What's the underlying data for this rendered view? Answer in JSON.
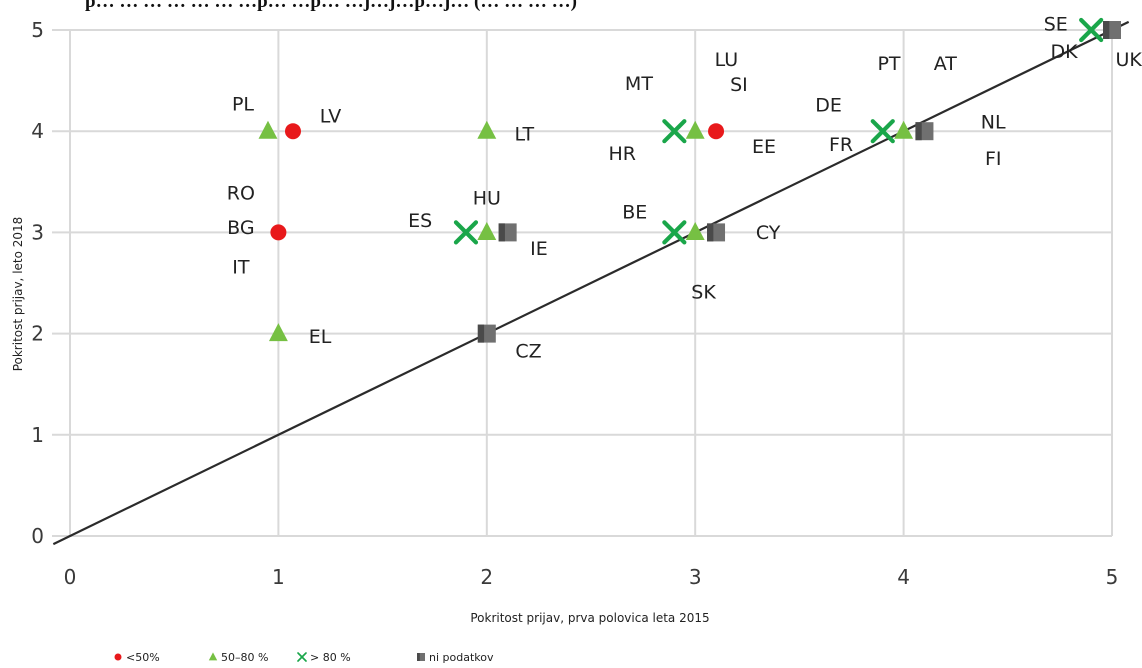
{
  "chart_data": {
    "type": "scatter",
    "title": "p… … … … … … …p… …p… …j…j…p…j… (… … … …)",
    "xlabel": "Pokritost prijav, prva polovica leta 2015",
    "ylabel": "Pokritost prijav, leto 2018",
    "xlim": [
      0,
      5
    ],
    "ylim": [
      0,
      5
    ],
    "x_ticks": [
      "0",
      "1",
      "2",
      "3",
      "4",
      "5"
    ],
    "y_ticks": [
      "0",
      "1",
      "2",
      "3",
      "4",
      "5"
    ],
    "grid": true,
    "reference_line": {
      "from": [
        0,
        0
      ],
      "to": [
        5,
        5
      ]
    },
    "legend": {
      "placement": "bottom-left",
      "entries": [
        {
          "key": "lt50",
          "label": "<50%",
          "color": "#e8191b",
          "marker": "circle"
        },
        {
          "key": "mid",
          "label": "50–80 %",
          "color": "#76c043",
          "marker": "triangle"
        },
        {
          "key": "gt80",
          "label": "> 80 %",
          "color": "#1aa64a",
          "marker": "x"
        },
        {
          "key": "nodata",
          "label": "ni podatkov",
          "color": "#707070",
          "marker": "square"
        }
      ]
    },
    "points": [
      {
        "series": "mid",
        "x": 0.95,
        "y": 4
      },
      {
        "series": "lt50",
        "x": 1.07,
        "y": 4
      },
      {
        "series": "lt50",
        "x": 1.0,
        "y": 3
      },
      {
        "series": "mid",
        "x": 1.0,
        "y": 2
      },
      {
        "series": "mid",
        "x": 2.0,
        "y": 4
      },
      {
        "series": "gt80",
        "x": 1.9,
        "y": 3
      },
      {
        "series": "mid",
        "x": 2.0,
        "y": 3
      },
      {
        "series": "nodata",
        "x": 2.1,
        "y": 3
      },
      {
        "series": "nodata",
        "x": 2.0,
        "y": 2
      },
      {
        "series": "gt80",
        "x": 2.9,
        "y": 4
      },
      {
        "series": "mid",
        "x": 3.0,
        "y": 4
      },
      {
        "series": "lt50",
        "x": 3.1,
        "y": 4
      },
      {
        "series": "gt80",
        "x": 2.9,
        "y": 3
      },
      {
        "series": "mid",
        "x": 3.0,
        "y": 3
      },
      {
        "series": "nodata",
        "x": 3.1,
        "y": 3
      },
      {
        "series": "gt80",
        "x": 3.9,
        "y": 4
      },
      {
        "series": "mid",
        "x": 4.0,
        "y": 4
      },
      {
        "series": "nodata",
        "x": 4.1,
        "y": 4
      },
      {
        "series": "gt80",
        "x": 4.9,
        "y": 5
      },
      {
        "series": "nodata",
        "x": 5.0,
        "y": 5
      }
    ],
    "country_labels": [
      {
        "text": "PL",
        "x": 0.83,
        "y": 4.26
      },
      {
        "text": "LV",
        "x": 1.25,
        "y": 4.14
      },
      {
        "text": "RO",
        "x": 0.82,
        "y": 3.38
      },
      {
        "text": "BG",
        "x": 0.82,
        "y": 3.04
      },
      {
        "text": "IT",
        "x": 0.82,
        "y": 2.65
      },
      {
        "text": "EL",
        "x": 1.2,
        "y": 1.96
      },
      {
        "text": "LT",
        "x": 2.18,
        "y": 3.96
      },
      {
        "text": "HU",
        "x": 2.0,
        "y": 3.33
      },
      {
        "text": "ES",
        "x": 1.68,
        "y": 3.11
      },
      {
        "text": "IE",
        "x": 2.25,
        "y": 2.83
      },
      {
        "text": "CZ",
        "x": 2.2,
        "y": 1.82
      },
      {
        "text": "MT",
        "x": 2.73,
        "y": 4.46
      },
      {
        "text": "LU",
        "x": 3.15,
        "y": 4.7
      },
      {
        "text": "SI",
        "x": 3.21,
        "y": 4.45
      },
      {
        "text": "HR",
        "x": 2.65,
        "y": 3.77
      },
      {
        "text": "EE",
        "x": 3.33,
        "y": 3.84
      },
      {
        "text": "BE",
        "x": 2.71,
        "y": 3.19
      },
      {
        "text": "CY",
        "x": 3.35,
        "y": 2.99
      },
      {
        "text": "SK",
        "x": 3.04,
        "y": 2.4
      },
      {
        "text": "PT",
        "x": 3.93,
        "y": 4.66
      },
      {
        "text": "AT",
        "x": 4.2,
        "y": 4.66
      },
      {
        "text": "DE",
        "x": 3.64,
        "y": 4.25
      },
      {
        "text": "NL",
        "x": 4.43,
        "y": 4.08
      },
      {
        "text": "FR",
        "x": 3.7,
        "y": 3.86
      },
      {
        "text": "FI",
        "x": 4.43,
        "y": 3.72
      },
      {
        "text": "SE",
        "x": 4.73,
        "y": 5.05
      },
      {
        "text": "DK",
        "x": 4.77,
        "y": 4.78
      },
      {
        "text": "UK",
        "x": 5.08,
        "y": 4.7
      }
    ]
  }
}
